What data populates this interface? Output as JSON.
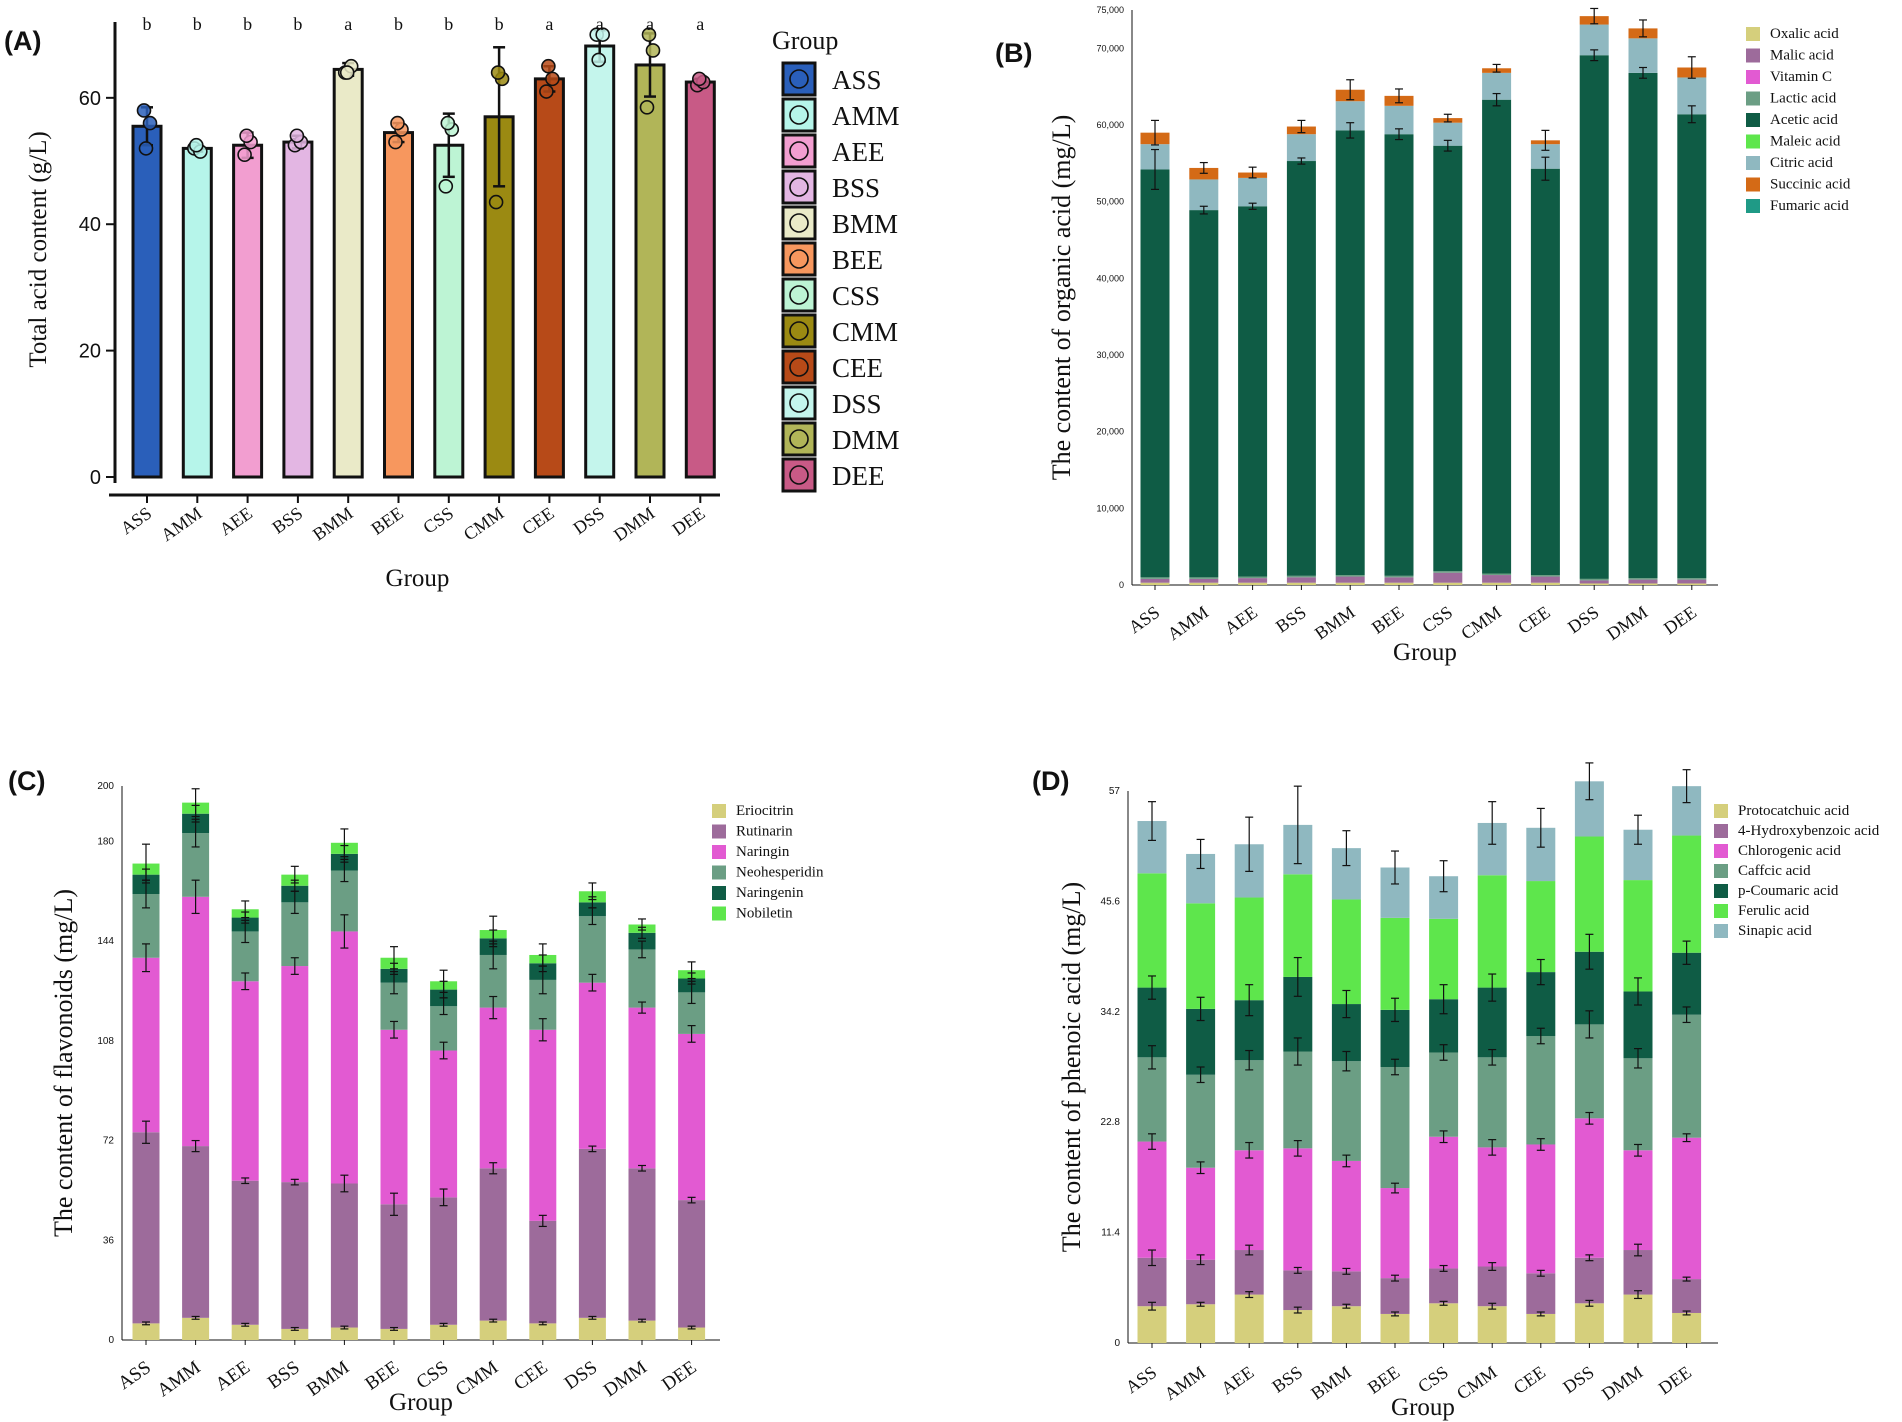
{
  "colors": {
    "axis": "#111111",
    "error_bar": "#111111"
  },
  "chart_data": [
    {
      "id": "A",
      "type": "bar",
      "panel_label": "(A)",
      "title": "",
      "xlabel": "Group",
      "ylabel": "Total acid content (g/L)",
      "ylim": [
        0,
        72
      ],
      "yticks": [
        0,
        20,
        40,
        60
      ],
      "categories": [
        "ASS",
        "AMM",
        "AEE",
        "BSS",
        "BMM",
        "BEE",
        "CSS",
        "CMM",
        "CEE",
        "DSS",
        "DMM",
        "DEE"
      ],
      "values": [
        55.5,
        52.0,
        52.5,
        53.0,
        64.5,
        54.5,
        52.5,
        57.0,
        63.0,
        68.2,
        65.2,
        62.5
      ],
      "errors": [
        3.0,
        0.5,
        2.0,
        1.0,
        1.0,
        1.5,
        5.0,
        11.0,
        2.0,
        2.5,
        5.0,
        0.5
      ],
      "significance": [
        "b",
        "b",
        "b",
        "b",
        "a",
        "b",
        "b",
        "b",
        "a",
        "a",
        "a",
        "a"
      ],
      "points": [
        [
          58,
          56,
          52
        ],
        [
          52,
          51.5,
          52.5
        ],
        [
          51,
          53,
          54
        ],
        [
          52.5,
          53,
          54
        ],
        [
          64,
          65,
          64
        ],
        [
          53,
          55,
          56
        ],
        [
          46,
          55,
          56
        ],
        [
          43.5,
          63,
          64
        ],
        [
          61,
          63,
          65
        ],
        [
          70,
          70,
          66
        ],
        [
          58.5,
          67.5,
          70
        ],
        [
          62,
          62.5,
          63
        ]
      ],
      "colors": [
        "#2a5fba",
        "#b6f5ea",
        "#f29ed0",
        "#e3b6e3",
        "#eaeac8",
        "#f7975e",
        "#bdf4d4",
        "#9b8a12",
        "#b74a18",
        "#c4f5ec",
        "#b1b558",
        "#c85a86"
      ],
      "legend_title": "Group",
      "legend": [
        "ASS",
        "AMM",
        "AEE",
        "BSS",
        "BMM",
        "BEE",
        "CSS",
        "CMM",
        "CEE",
        "DSS",
        "DMM",
        "DEE"
      ]
    },
    {
      "id": "B",
      "type": "stacked-bar",
      "panel_label": "(B)",
      "xlabel": "Group",
      "ylabel": "The content of organic acid (mg/L)",
      "ylim": [
        0,
        75000
      ],
      "yticks": [
        0,
        10000,
        20000,
        30000,
        40000,
        50000,
        60000,
        70000,
        75000
      ],
      "ytick_labels": [
        "0",
        "10,000",
        "20,000",
        "30,000",
        "40,000",
        "50,000",
        "60,000",
        "70,000",
        "75,000"
      ],
      "categories": [
        "ASS",
        "AMM",
        "AEE",
        "BSS",
        "BMM",
        "BEE",
        "CSS",
        "CMM",
        "CEE",
        "DSS",
        "DMM",
        "DEE"
      ],
      "series": [
        {
          "name": "Oxalic acid",
          "color": "#d5cf7c",
          "values": [
            300,
            300,
            300,
            300,
            300,
            300,
            300,
            300,
            300,
            200,
            200,
            200
          ],
          "errors": [
            0,
            0,
            0,
            0,
            0,
            0,
            0,
            0,
            0,
            0,
            0,
            0
          ]
        },
        {
          "name": "Malic acid",
          "color": "#9d6b9b",
          "values": [
            500,
            500,
            600,
            700,
            800,
            700,
            1300,
            1000,
            800,
            400,
            500,
            500
          ],
          "errors": [
            0,
            0,
            0,
            0,
            0,
            0,
            0,
            0,
            0,
            0,
            0,
            0
          ]
        },
        {
          "name": "Vitamin C",
          "color": "#e25ad2",
          "values": [
            0,
            0,
            0,
            0,
            0,
            0,
            0,
            0,
            0,
            0,
            0,
            0
          ],
          "errors": [
            0,
            0,
            0,
            0,
            0,
            0,
            0,
            0,
            0,
            0,
            0,
            0
          ]
        },
        {
          "name": "Lactic acid",
          "color": "#6b9e84",
          "values": [
            200,
            200,
            200,
            200,
            200,
            200,
            200,
            200,
            200,
            200,
            200,
            200
          ],
          "errors": [
            0,
            0,
            0,
            0,
            0,
            0,
            0,
            0,
            0,
            0,
            0,
            0
          ]
        },
        {
          "name": "Acetic acid",
          "color": "#0f5c45",
          "values": [
            53200,
            47900,
            48300,
            54100,
            58000,
            57600,
            55500,
            61800,
            53000,
            68300,
            65900,
            60500
          ],
          "errors": [
            2600,
            500,
            400,
            400,
            1000,
            700,
            700,
            800,
            1500,
            700,
            700,
            1100
          ]
        },
        {
          "name": "Maleic acid",
          "color": "#5ee64c",
          "values": [
            0,
            0,
            0,
            0,
            0,
            0,
            0,
            0,
            0,
            0,
            0,
            0
          ],
          "errors": [
            0,
            0,
            0,
            0,
            0,
            0,
            0,
            0,
            0,
            0,
            0,
            0
          ]
        },
        {
          "name": "Citric acid",
          "color": "#8fb8c0",
          "values": [
            3300,
            4000,
            3700,
            3500,
            3800,
            3700,
            3000,
            3500,
            3200,
            4000,
            4500,
            4800
          ],
          "errors": [
            0,
            0,
            0,
            0,
            0,
            0,
            0,
            0,
            0,
            0,
            0,
            0
          ]
        },
        {
          "name": "Succinic acid",
          "color": "#d46a16",
          "values": [
            1500,
            1500,
            700,
            1000,
            1500,
            1300,
            600,
            600,
            500,
            1100,
            1300,
            1300
          ],
          "errors": [
            1600,
            700,
            700,
            800,
            1300,
            900,
            500,
            500,
            1300,
            1000,
            1100,
            1400
          ]
        },
        {
          "name": "Fumaric acid",
          "color": "#1f9a86",
          "values": [
            0,
            0,
            0,
            0,
            0,
            0,
            0,
            0,
            0,
            0,
            0,
            0
          ],
          "errors": [
            0,
            0,
            0,
            0,
            0,
            0,
            0,
            0,
            0,
            0,
            0,
            0
          ]
        }
      ]
    },
    {
      "id": "C",
      "type": "stacked-bar",
      "panel_label": "(C)",
      "xlabel": "Group",
      "ylabel": "The content of flavonoids (mg/L)",
      "ylim": [
        0,
        200
      ],
      "yticks": [
        0,
        36,
        72,
        108,
        144,
        180,
        200
      ],
      "ytick_labels": [
        "0",
        "36",
        "72",
        "108",
        "144",
        "180",
        "200"
      ],
      "categories": [
        "ASS",
        "AMM",
        "AEE",
        "BSS",
        "BMM",
        "BEE",
        "CSS",
        "CMM",
        "CEE",
        "DSS",
        "DMM",
        "DEE"
      ],
      "series": [
        {
          "name": "Eriocitrin",
          "color": "#d5cf7c",
          "values": [
            6,
            8,
            5.5,
            4,
            4.5,
            4,
            5.5,
            7,
            6,
            8,
            7,
            4.5
          ],
          "errors": [
            0.5,
            0.5,
            0.5,
            0.5,
            0.5,
            0.5,
            0.5,
            0.5,
            0.5,
            0.5,
            0.5,
            0.5
          ]
        },
        {
          "name": "Rutinarin",
          "color": "#9d6b9b",
          "values": [
            69,
            62,
            52,
            53,
            52,
            45,
            46,
            55,
            37,
            61,
            55,
            46
          ],
          "errors": [
            4,
            2,
            1,
            1,
            3,
            4,
            3,
            2,
            2,
            1,
            1,
            1
          ]
        },
        {
          "name": "Naringin",
          "color": "#e25ad2",
          "values": [
            63,
            90,
            72,
            78,
            91,
            63,
            53,
            58,
            69,
            60,
            58,
            60
          ],
          "errors": [
            5,
            6,
            3,
            3,
            6,
            3,
            3,
            4,
            4,
            3,
            2,
            3
          ]
        },
        {
          "name": "Neohesperidin",
          "color": "#6b9e84",
          "values": [
            23,
            23,
            18,
            23,
            22,
            17,
            16,
            19,
            18,
            24,
            21,
            15
          ],
          "errors": [
            5,
            5,
            4,
            4,
            4,
            4,
            3,
            5,
            5,
            3,
            3,
            4
          ]
        },
        {
          "name": "Naringenin",
          "color": "#0f5c45",
          "values": [
            7,
            7,
            5,
            6,
            6,
            5,
            6,
            6,
            6,
            5,
            6,
            5
          ],
          "errors": [
            2,
            3,
            2,
            2,
            3,
            2,
            3,
            3,
            3,
            2,
            2,
            2
          ]
        },
        {
          "name": "Nobiletin",
          "color": "#5ee64c",
          "values": [
            4,
            4,
            3,
            4,
            4,
            4,
            3,
            3,
            3,
            4,
            3,
            3
          ],
          "errors": [
            7,
            5,
            3,
            3,
            5,
            4,
            4,
            5,
            4,
            3,
            2,
            3
          ]
        }
      ]
    },
    {
      "id": "D",
      "type": "stacked-bar",
      "panel_label": "(D)",
      "xlabel": "Group",
      "ylabel": "The content of phenoic acid (mg/L)",
      "ylim": [
        0,
        57
      ],
      "yticks": [
        0,
        11.4,
        22.8,
        34.2,
        45.6,
        57
      ],
      "ytick_labels": [
        "0",
        "11.4",
        "22.8",
        "34.2",
        "45.6",
        "57"
      ],
      "categories": [
        "ASS",
        "AMM",
        "AEE",
        "BSS",
        "BMM",
        "BEE",
        "CSS",
        "CMM",
        "CEE",
        "DSS",
        "DMM",
        "DEE"
      ],
      "series": [
        {
          "name": "Protocatchuic acid",
          "color": "#d5cf7c",
          "values": [
            3.8,
            4.0,
            5.0,
            3.4,
            3.8,
            3.0,
            4.1,
            3.8,
            3.0,
            4.1,
            5.0,
            3.1
          ],
          "errors": [
            0.4,
            0.2,
            0.3,
            0.3,
            0.2,
            0.2,
            0.2,
            0.3,
            0.2,
            0.3,
            0.4,
            0.2
          ]
        },
        {
          "name": "4-Hydroxybenzoic acid",
          "color": "#9d6b9b",
          "values": [
            5.0,
            4.6,
            4.6,
            4.1,
            3.6,
            3.7,
            3.6,
            4.1,
            4.2,
            4.7,
            4.6,
            3.5
          ],
          "errors": [
            0.8,
            0.5,
            0.5,
            0.3,
            0.3,
            0.3,
            0.3,
            0.4,
            0.3,
            0.3,
            0.6,
            0.2
          ]
        },
        {
          "name": "Chlorogenic acid",
          "color": "#e25ad2",
          "values": [
            12.0,
            9.5,
            10.3,
            12.6,
            11.4,
            9.3,
            13.6,
            12.3,
            13.3,
            14.4,
            10.3,
            14.6
          ],
          "errors": [
            0.8,
            0.6,
            0.8,
            0.8,
            0.6,
            0.5,
            0.6,
            0.8,
            0.6,
            0.6,
            0.6,
            0.4
          ]
        },
        {
          "name": "Caffcic acid",
          "color": "#6b9e84",
          "values": [
            8.7,
            9.6,
            9.3,
            10.0,
            10.3,
            12.5,
            8.7,
            9.3,
            11.2,
            9.7,
            9.5,
            12.7
          ],
          "errors": [
            1.2,
            0.8,
            1.0,
            1.4,
            1.0,
            0.8,
            0.8,
            0.8,
            0.8,
            1.4,
            1.0,
            0.8
          ]
        },
        {
          "name": "p-Coumaric acid",
          "color": "#0f5c45",
          "values": [
            7.2,
            6.8,
            6.2,
            7.7,
            5.9,
            5.9,
            5.5,
            7.2,
            6.6,
            7.5,
            6.9,
            6.4
          ],
          "errors": [
            1.2,
            1.2,
            1.6,
            2.0,
            1.4,
            1.2,
            1.5,
            1.4,
            1.3,
            1.8,
            1.4,
            1.2
          ]
        },
        {
          "name": "Ferulic acid",
          "color": "#5ee64c",
          "values": [
            11.8,
            10.9,
            10.6,
            10.6,
            10.8,
            9.5,
            8.3,
            11.6,
            9.4,
            11.9,
            11.5,
            12.1
          ],
          "errors": [
            0,
            0,
            0,
            0,
            0,
            0,
            0,
            0,
            0,
            0,
            0,
            0
          ]
        },
        {
          "name": "Sinapic acid",
          "color": "#8fb8c0",
          "values": [
            5.4,
            5.1,
            5.5,
            5.1,
            5.3,
            5.2,
            4.4,
            5.4,
            5.5,
            5.7,
            5.2,
            5.1
          ],
          "errors": [
            2.0,
            1.5,
            2.8,
            4.0,
            1.8,
            1.7,
            1.6,
            2.2,
            2.0,
            1.9,
            1.5,
            1.7
          ]
        }
      ]
    }
  ]
}
